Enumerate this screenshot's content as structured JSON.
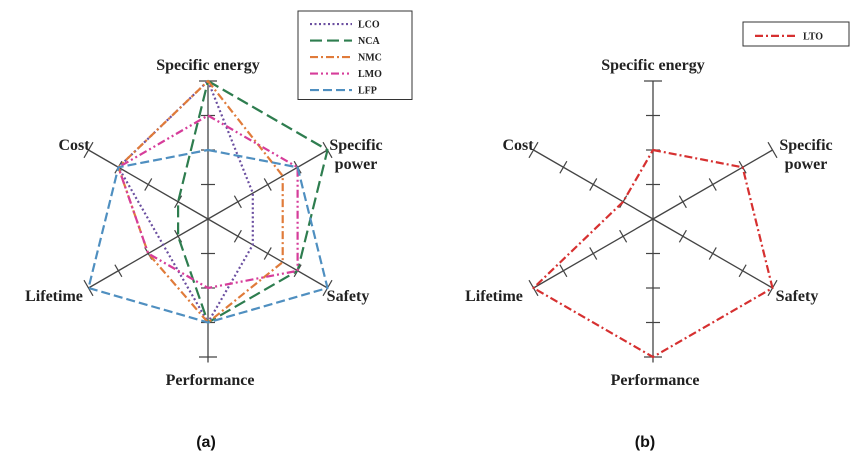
{
  "chart_data": [
    {
      "type": "radar",
      "panel_label": "(a)",
      "axes": [
        "Specific energy",
        "Specific power",
        "Safety",
        "Performance",
        "Lifetime",
        "Cost"
      ],
      "axis_label_lines": {
        "Specific energy": [
          "Specific energy"
        ],
        "Specific power": [
          "Specific",
          "power"
        ],
        "Safety": [
          "Safety"
        ],
        "Performance": [
          "Performance"
        ],
        "Lifetime": [
          "Lifetime"
        ],
        "Cost": [
          "Cost"
        ]
      },
      "scale": [
        0,
        4
      ],
      "series": [
        {
          "name": "LCO",
          "color": "#6b4fa0",
          "dash": "dotted",
          "values": [
            4,
            1.5,
            1.5,
            3,
            1.5,
            3
          ]
        },
        {
          "name": "NCA",
          "color": "#2e7d4f",
          "dash": "long-dash",
          "values": [
            4,
            4,
            3,
            3,
            1,
            1
          ]
        },
        {
          "name": "NMC",
          "color": "#e07b3a",
          "dash": "dash-dot",
          "values": [
            4,
            2.5,
            2.5,
            3,
            2,
            3
          ]
        },
        {
          "name": "LMO",
          "color": "#d63d9a",
          "dash": "dash-dot-dot",
          "values": [
            3,
            3,
            3,
            2,
            2,
            3
          ]
        },
        {
          "name": "LFP",
          "color": "#4f8fc0",
          "dash": "dash",
          "values": [
            2,
            3,
            4,
            3,
            4,
            3
          ]
        }
      ],
      "legend_position": "top-right"
    },
    {
      "type": "radar",
      "panel_label": "(b)",
      "axes": [
        "Specific energy",
        "Specific power",
        "Safety",
        "Performance",
        "Lifetime",
        "Cost"
      ],
      "axis_label_lines": {
        "Specific energy": [
          "Specific energy"
        ],
        "Specific power": [
          "Specific",
          "power"
        ],
        "Safety": [
          "Safety"
        ],
        "Performance": [
          "Performance"
        ],
        "Lifetime": [
          "Lifetime"
        ],
        "Cost": [
          "Cost"
        ]
      },
      "scale": [
        0,
        4
      ],
      "series": [
        {
          "name": "LTO",
          "color": "#d63030",
          "dash": "dash-dot",
          "values": [
            2,
            3,
            4,
            4,
            4,
            1
          ]
        }
      ],
      "legend_position": "top-right"
    }
  ]
}
